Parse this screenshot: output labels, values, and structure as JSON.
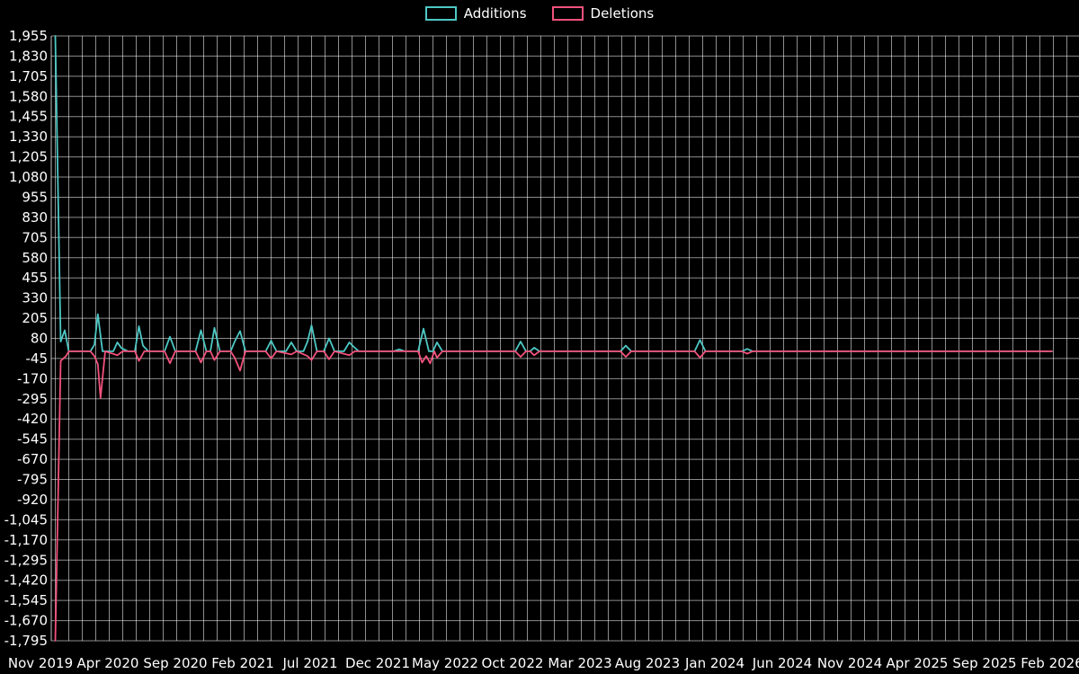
{
  "chart_data": {
    "type": "line",
    "title": "",
    "legend_position": "top-center",
    "background_color": "#000000",
    "grid": true,
    "legend": [
      {
        "name": "Additions",
        "color": "#4ec9c5"
      },
      {
        "name": "Deletions",
        "color": "#f2527c"
      }
    ],
    "y_axis": {
      "min": -1795,
      "max": 1955,
      "step": 125,
      "ticks": [
        {
          "value": 1955,
          "label": "1,955"
        },
        {
          "value": 1830,
          "label": "1,830"
        },
        {
          "value": 1705,
          "label": "1,705"
        },
        {
          "value": 1580,
          "label": "1,580"
        },
        {
          "value": 1455,
          "label": "1,455"
        },
        {
          "value": 1330,
          "label": "1,330"
        },
        {
          "value": 1205,
          "label": "1,205"
        },
        {
          "value": 1080,
          "label": "1,080"
        },
        {
          "value": 955,
          "label": "955"
        },
        {
          "value": 830,
          "label": "830"
        },
        {
          "value": 705,
          "label": "705"
        },
        {
          "value": 580,
          "label": "580"
        },
        {
          "value": 455,
          "label": "455"
        },
        {
          "value": 330,
          "label": "330"
        },
        {
          "value": 205,
          "label": "205"
        },
        {
          "value": 80,
          "label": "80"
        },
        {
          "value": -45,
          "label": "-45"
        },
        {
          "value": -170,
          "label": "-170"
        },
        {
          "value": -295,
          "label": "-295"
        },
        {
          "value": -420,
          "label": "-420"
        },
        {
          "value": -545,
          "label": "-545"
        },
        {
          "value": -670,
          "label": "-670"
        },
        {
          "value": -795,
          "label": "-795"
        },
        {
          "value": -920,
          "label": "-920"
        },
        {
          "value": -1045,
          "label": "-1,045"
        },
        {
          "value": -1170,
          "label": "-1,170"
        },
        {
          "value": -1295,
          "label": "-1,295"
        },
        {
          "value": -1420,
          "label": "-1,420"
        },
        {
          "value": -1545,
          "label": "-1,545"
        },
        {
          "value": -1670,
          "label": "-1,670"
        },
        {
          "value": -1795,
          "label": "-1,795"
        }
      ]
    },
    "x_axis": {
      "unit": "months since Nov 2019",
      "ticks": [
        {
          "month": 0,
          "label": "Nov 2019"
        },
        {
          "month": 5,
          "label": "Apr 2020"
        },
        {
          "month": 10,
          "label": "Sep 2020"
        },
        {
          "month": 15,
          "label": "Feb 2021"
        },
        {
          "month": 20,
          "label": "Jul 2021"
        },
        {
          "month": 25,
          "label": "Dec 2021"
        },
        {
          "month": 30,
          "label": "May 2022"
        },
        {
          "month": 35,
          "label": "Oct 2022"
        },
        {
          "month": 40,
          "label": "Mar 2023"
        },
        {
          "month": 45,
          "label": "Aug 2023"
        },
        {
          "month": 50,
          "label": "Jan 2024"
        },
        {
          "month": 55,
          "label": "Jun 2024"
        },
        {
          "month": 60,
          "label": "Nov 2024"
        },
        {
          "month": 65,
          "label": "Apr 2025"
        },
        {
          "month": 70,
          "label": "Sep 2025"
        },
        {
          "month": 75,
          "label": "Feb 2026"
        }
      ]
    },
    "series": [
      {
        "name": "Additions",
        "color": "#4ec9c5",
        "points": [
          [
            1.1,
            1955
          ],
          [
            1.5,
            60
          ],
          [
            1.8,
            130
          ],
          [
            2.1,
            0
          ],
          [
            3.7,
            0
          ],
          [
            4.0,
            40
          ],
          [
            4.25,
            230
          ],
          [
            4.6,
            0
          ],
          [
            5.4,
            0
          ],
          [
            5.7,
            55
          ],
          [
            6.0,
            20
          ],
          [
            6.5,
            0
          ],
          [
            7.0,
            0
          ],
          [
            7.3,
            155
          ],
          [
            7.6,
            35
          ],
          [
            8.0,
            0
          ],
          [
            9.2,
            0
          ],
          [
            9.6,
            90
          ],
          [
            10.0,
            0
          ],
          [
            11.5,
            0
          ],
          [
            11.9,
            130
          ],
          [
            12.3,
            0
          ],
          [
            12.6,
            0
          ],
          [
            12.9,
            145
          ],
          [
            13.3,
            0
          ],
          [
            14.1,
            0
          ],
          [
            14.4,
            60
          ],
          [
            14.8,
            125
          ],
          [
            15.2,
            0
          ],
          [
            16.7,
            0
          ],
          [
            17.1,
            65
          ],
          [
            17.5,
            0
          ],
          [
            18.2,
            0
          ],
          [
            18.6,
            55
          ],
          [
            19.0,
            0
          ],
          [
            19.5,
            0
          ],
          [
            19.8,
            60
          ],
          [
            20.1,
            160
          ],
          [
            20.5,
            0
          ],
          [
            21.0,
            0
          ],
          [
            21.4,
            80
          ],
          [
            21.8,
            0
          ],
          [
            22.5,
            0
          ],
          [
            22.9,
            55
          ],
          [
            23.2,
            30
          ],
          [
            23.6,
            0
          ],
          [
            26.2,
            0
          ],
          [
            26.6,
            12
          ],
          [
            27.0,
            0
          ],
          [
            28.0,
            0
          ],
          [
            28.4,
            140
          ],
          [
            28.8,
            0
          ],
          [
            29.1,
            0
          ],
          [
            29.4,
            55
          ],
          [
            29.8,
            0
          ],
          [
            35.2,
            0
          ],
          [
            35.6,
            60
          ],
          [
            36.0,
            0
          ],
          [
            36.3,
            0
          ],
          [
            36.6,
            22
          ],
          [
            37.0,
            0
          ],
          [
            43.0,
            0
          ],
          [
            43.4,
            35
          ],
          [
            43.8,
            0
          ],
          [
            48.5,
            0
          ],
          [
            48.9,
            70
          ],
          [
            49.3,
            0
          ],
          [
            52.0,
            0
          ],
          [
            52.4,
            15
          ],
          [
            52.8,
            0
          ],
          [
            75,
            0
          ]
        ]
      },
      {
        "name": "Deletions",
        "color": "#f2527c",
        "points": [
          [
            1.1,
            -1795
          ],
          [
            1.5,
            -60
          ],
          [
            1.9,
            -30
          ],
          [
            2.1,
            0
          ],
          [
            3.7,
            0
          ],
          [
            4.0,
            -30
          ],
          [
            4.25,
            -80
          ],
          [
            4.45,
            -290
          ],
          [
            4.8,
            0
          ],
          [
            5.7,
            -25
          ],
          [
            6.1,
            0
          ],
          [
            7.0,
            0
          ],
          [
            7.3,
            -60
          ],
          [
            7.7,
            0
          ],
          [
            9.2,
            0
          ],
          [
            9.6,
            -75
          ],
          [
            10.0,
            0
          ],
          [
            11.5,
            0
          ],
          [
            11.9,
            -70
          ],
          [
            12.3,
            0
          ],
          [
            12.6,
            0
          ],
          [
            12.9,
            -55
          ],
          [
            13.3,
            0
          ],
          [
            14.1,
            0
          ],
          [
            14.4,
            -40
          ],
          [
            14.8,
            -120
          ],
          [
            15.2,
            0
          ],
          [
            16.7,
            0
          ],
          [
            17.1,
            -45
          ],
          [
            17.5,
            0
          ],
          [
            18.6,
            -20
          ],
          [
            19.0,
            0
          ],
          [
            19.8,
            -30
          ],
          [
            20.1,
            -55
          ],
          [
            20.5,
            0
          ],
          [
            21.0,
            0
          ],
          [
            21.4,
            -50
          ],
          [
            21.8,
            0
          ],
          [
            22.9,
            -25
          ],
          [
            23.3,
            0
          ],
          [
            28.0,
            0
          ],
          [
            28.3,
            -70
          ],
          [
            28.6,
            -30
          ],
          [
            28.9,
            -75
          ],
          [
            29.2,
            0
          ],
          [
            29.4,
            -40
          ],
          [
            29.8,
            0
          ],
          [
            35.2,
            0
          ],
          [
            35.6,
            -35
          ],
          [
            36.0,
            0
          ],
          [
            36.3,
            0
          ],
          [
            36.6,
            -25
          ],
          [
            37.0,
            0
          ],
          [
            43.0,
            0
          ],
          [
            43.4,
            -35
          ],
          [
            43.8,
            0
          ],
          [
            48.5,
            0
          ],
          [
            48.9,
            -40
          ],
          [
            49.3,
            0
          ],
          [
            52.0,
            0
          ],
          [
            52.4,
            -15
          ],
          [
            52.8,
            0
          ],
          [
            75,
            0
          ]
        ]
      }
    ]
  }
}
